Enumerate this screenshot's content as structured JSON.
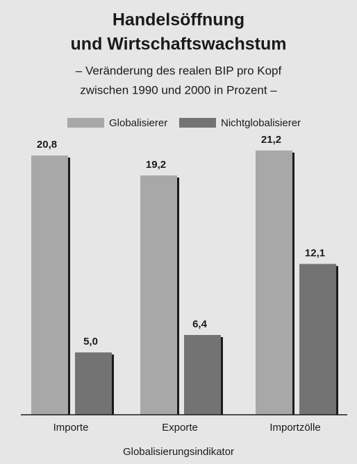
{
  "chart_data": {
    "type": "bar",
    "title": [
      "Handelsöffnung",
      "und Wirtschaftswachstum"
    ],
    "subtitle": [
      "– Veränderung des realen BIP pro Kopf",
      "zwischen 1990 und 2000 in Prozent –"
    ],
    "x_label": "Globalisierungsindikator",
    "categories": [
      "Importe",
      "Exporte",
      "Importzölle"
    ],
    "series": [
      {
        "name": "Globalisierer",
        "color": "#a8a8a8",
        "values": [
          20.8,
          19.2,
          21.2
        ],
        "value_labels": [
          "20,8",
          "19,2",
          "21,2"
        ]
      },
      {
        "name": "Nichtglobalisierer",
        "color": "#737373",
        "values": [
          5.0,
          6.4,
          12.1
        ],
        "value_labels": [
          "5,0",
          "6,4",
          "12,1"
        ]
      }
    ]
  }
}
